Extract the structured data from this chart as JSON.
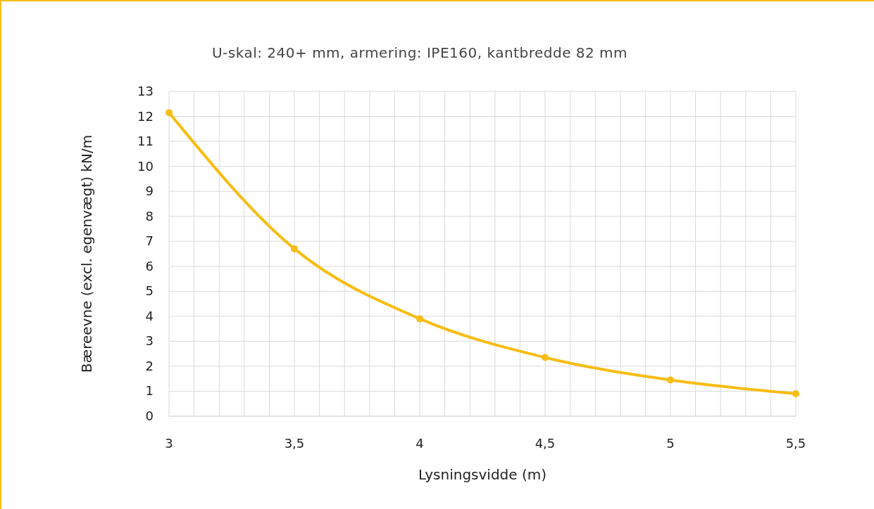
{
  "chart_data": {
    "type": "line",
    "title": "U-skal: 240+ mm, armering: IPE160, kantbredde 82 mm",
    "xlabel": "Lysningsvidde (m)",
    "ylabel": "Bæreevne (excl. egenvægt) kN/m",
    "x": [
      3,
      3.5,
      4,
      4.5,
      5,
      5.5
    ],
    "series": [
      {
        "color": "#f8bd14",
        "values": [
          12.15,
          6.7,
          3.9,
          2.35,
          1.45,
          0.9
        ]
      }
    ],
    "xlim": [
      3,
      5.5
    ],
    "xticks": [
      3,
      {
        "value": 3.1,
        "label": null
      },
      {
        "value": 3.2,
        "label": null
      },
      {
        "value": 3.3,
        "label": null
      },
      {
        "value": 3.4,
        "label": null
      },
      {
        "value": 3.5,
        "label": "3,5"
      },
      {
        "value": 3.6,
        "label": null
      },
      {
        "value": 3.7,
        "label": null
      },
      {
        "value": 3.8,
        "label": null
      },
      {
        "value": 3.9,
        "label": null
      },
      4,
      {
        "value": 4.1,
        "label": null
      },
      {
        "value": 4.2,
        "label": null
      },
      {
        "value": 4.3,
        "label": null
      },
      {
        "value": 4.4,
        "label": null
      },
      {
        "value": 4.5,
        "label": "4,5"
      },
      {
        "value": 4.6,
        "label": null
      },
      {
        "value": 4.7,
        "label": null
      },
      {
        "value": 4.8,
        "label": null
      },
      {
        "value": 4.9,
        "label": null
      },
      5,
      {
        "value": 5.1,
        "label": null
      },
      {
        "value": 5.2,
        "label": null
      },
      {
        "value": 5.3,
        "label": null
      },
      {
        "value": 5.4,
        "label": null
      },
      {
        "value": 5.5,
        "label": "5,5"
      }
    ],
    "ylim": [
      0,
      13
    ],
    "yticks": [
      0,
      1,
      2,
      3,
      4,
      5,
      6,
      7,
      8,
      9,
      10,
      11,
      12,
      13
    ],
    "grid": true,
    "marker": "circle",
    "line_style": "solid"
  }
}
